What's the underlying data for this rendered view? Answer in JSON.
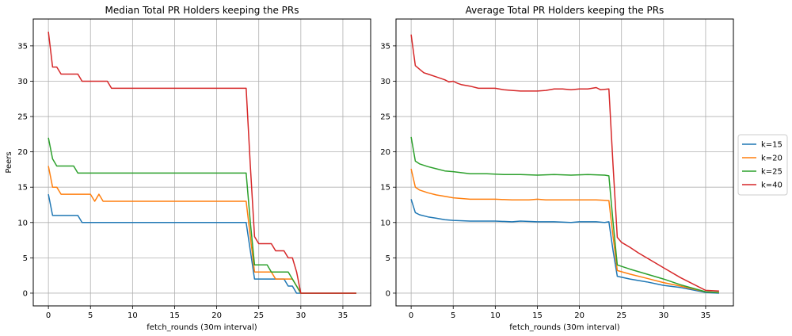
{
  "colors": {
    "k15": "#1f77b4",
    "k20": "#ff7f0e",
    "k25": "#2ca02c",
    "k40": "#d62728",
    "grid": "#b0b0b0",
    "axis": "#000000"
  },
  "legend": {
    "placement": "right",
    "entries": [
      "k=15",
      "k=20",
      "k=25",
      "k=40"
    ]
  },
  "chart_data": [
    {
      "type": "line",
      "title": "Median Total PR Holders keeping the PRs",
      "xlabel": "fetch_rounds (30m interval)",
      "ylabel": "Peers",
      "xlim": [
        -1.8,
        38.3
      ],
      "ylim": [
        -1.8,
        38.8
      ],
      "xticks": [
        0,
        5,
        10,
        15,
        20,
        25,
        30,
        35
      ],
      "yticks": [
        0,
        5,
        10,
        15,
        20,
        25,
        30,
        35
      ],
      "grid": true,
      "series": [
        {
          "name": "k=15",
          "color": "#1f77b4",
          "points": [
            [
              0,
              14
            ],
            [
              0.5,
              11
            ],
            [
              3.5,
              11
            ],
            [
              4,
              10
            ],
            [
              23.5,
              10
            ],
            [
              24,
              6
            ],
            [
              24.5,
              2
            ],
            [
              27.5,
              2
            ],
            [
              28,
              2
            ],
            [
              28.5,
              1
            ],
            [
              29,
              1
            ],
            [
              29.5,
              0
            ],
            [
              36.6,
              0
            ]
          ]
        },
        {
          "name": "k=20",
          "color": "#ff7f0e",
          "points": [
            [
              0,
              18
            ],
            [
              0.5,
              15
            ],
            [
              1,
              15
            ],
            [
              1.5,
              14
            ],
            [
              5,
              14
            ],
            [
              5.5,
              13
            ],
            [
              6,
              14
            ],
            [
              6.5,
              13
            ],
            [
              23.5,
              13
            ],
            [
              24,
              8
            ],
            [
              24.5,
              3
            ],
            [
              26.5,
              3
            ],
            [
              27,
              2
            ],
            [
              29,
              2
            ],
            [
              29.5,
              1
            ],
            [
              30,
              0
            ],
            [
              36.6,
              0
            ]
          ]
        },
        {
          "name": "k=25",
          "color": "#2ca02c",
          "points": [
            [
              0,
              22
            ],
            [
              0.5,
              19
            ],
            [
              1,
              18
            ],
            [
              3,
              18
            ],
            [
              3.5,
              17
            ],
            [
              23.5,
              17
            ],
            [
              24,
              10
            ],
            [
              24.5,
              4
            ],
            [
              26,
              4
            ],
            [
              26.5,
              3
            ],
            [
              28.5,
              3
            ],
            [
              29,
              2
            ],
            [
              29.5,
              1
            ],
            [
              30,
              0
            ],
            [
              36.6,
              0
            ]
          ]
        },
        {
          "name": "k=40",
          "color": "#d62728",
          "points": [
            [
              0,
              37
            ],
            [
              0.5,
              32
            ],
            [
              1,
              32
            ],
            [
              1.5,
              31
            ],
            [
              3.5,
              31
            ],
            [
              4,
              30
            ],
            [
              7,
              30
            ],
            [
              7.5,
              29
            ],
            [
              23.5,
              29
            ],
            [
              24,
              18
            ],
            [
              24.5,
              8
            ],
            [
              25,
              7
            ],
            [
              26.5,
              7
            ],
            [
              27,
              6
            ],
            [
              28,
              6
            ],
            [
              28.5,
              5
            ],
            [
              29,
              5
            ],
            [
              29.5,
              3
            ],
            [
              30,
              0
            ],
            [
              36.6,
              0
            ]
          ]
        }
      ]
    },
    {
      "type": "line",
      "title": "Average Total PR Holders keeping the PRs",
      "xlabel": "fetch_rounds (30m interval)",
      "ylabel": "",
      "xlim": [
        -1.8,
        38.3
      ],
      "ylim": [
        -1.8,
        38.8
      ],
      "xticks": [
        0,
        5,
        10,
        15,
        20,
        25,
        30,
        35
      ],
      "yticks": [
        0,
        5,
        10,
        15,
        20,
        25,
        30,
        35
      ],
      "grid": true,
      "series": [
        {
          "name": "k=15",
          "color": "#1f77b4",
          "points": [
            [
              0,
              13.3
            ],
            [
              0.5,
              11.4
            ],
            [
              1,
              11.1
            ],
            [
              2,
              10.8
            ],
            [
              3,
              10.6
            ],
            [
              4,
              10.4
            ],
            [
              5,
              10.3
            ],
            [
              7,
              10.2
            ],
            [
              10,
              10.2
            ],
            [
              12,
              10.1
            ],
            [
              13,
              10.2
            ],
            [
              15,
              10.1
            ],
            [
              17,
              10.1
            ],
            [
              19,
              10.0
            ],
            [
              20,
              10.1
            ],
            [
              22,
              10.1
            ],
            [
              23,
              10.0
            ],
            [
              23.5,
              10.1
            ],
            [
              24,
              6
            ],
            [
              24.5,
              2.4
            ],
            [
              26,
              2.0
            ],
            [
              28,
              1.6
            ],
            [
              30,
              1.1
            ],
            [
              32,
              0.8
            ],
            [
              35,
              0.1
            ],
            [
              36.6,
              0.0
            ]
          ]
        },
        {
          "name": "k=20",
          "color": "#ff7f0e",
          "points": [
            [
              0,
              17.6
            ],
            [
              0.5,
              15.0
            ],
            [
              1,
              14.6
            ],
            [
              2,
              14.2
            ],
            [
              3,
              13.9
            ],
            [
              4,
              13.7
            ],
            [
              5,
              13.5
            ],
            [
              7,
              13.3
            ],
            [
              10,
              13.3
            ],
            [
              12,
              13.2
            ],
            [
              14,
              13.2
            ],
            [
              15,
              13.3
            ],
            [
              16,
              13.2
            ],
            [
              18,
              13.2
            ],
            [
              20,
              13.2
            ],
            [
              22,
              13.2
            ],
            [
              23.5,
              13.1
            ],
            [
              24,
              8
            ],
            [
              24.5,
              3.2
            ],
            [
              26,
              2.7
            ],
            [
              28,
              2.1
            ],
            [
              30,
              1.5
            ],
            [
              32,
              1.0
            ],
            [
              35,
              0.2
            ],
            [
              36.6,
              0.1
            ]
          ]
        },
        {
          "name": "k=25",
          "color": "#2ca02c",
          "points": [
            [
              0,
              22.1
            ],
            [
              0.5,
              18.7
            ],
            [
              1,
              18.3
            ],
            [
              2,
              17.9
            ],
            [
              3,
              17.6
            ],
            [
              4,
              17.3
            ],
            [
              5,
              17.2
            ],
            [
              7,
              16.9
            ],
            [
              9,
              16.9
            ],
            [
              11,
              16.8
            ],
            [
              13,
              16.8
            ],
            [
              15,
              16.7
            ],
            [
              17,
              16.8
            ],
            [
              19,
              16.7
            ],
            [
              21,
              16.8
            ],
            [
              23,
              16.7
            ],
            [
              23.5,
              16.6
            ],
            [
              24,
              10
            ],
            [
              24.5,
              4.0
            ],
            [
              26,
              3.4
            ],
            [
              28,
              2.7
            ],
            [
              30,
              2.0
            ],
            [
              32,
              1.2
            ],
            [
              35,
              0.2
            ],
            [
              36.6,
              0.1
            ]
          ]
        },
        {
          "name": "k=40",
          "color": "#d62728",
          "points": [
            [
              0,
              36.6
            ],
            [
              0.5,
              32.2
            ],
            [
              1,
              31.7
            ],
            [
              1.5,
              31.2
            ],
            [
              2,
              31.0
            ],
            [
              3,
              30.6
            ],
            [
              4,
              30.2
            ],
            [
              4.5,
              29.9
            ],
            [
              5,
              30.0
            ],
            [
              5.5,
              29.7
            ],
            [
              6,
              29.5
            ],
            [
              7,
              29.3
            ],
            [
              8,
              29.0
            ],
            [
              9,
              29.0
            ],
            [
              10,
              29.0
            ],
            [
              11,
              28.8
            ],
            [
              12,
              28.7
            ],
            [
              13,
              28.6
            ],
            [
              14,
              28.6
            ],
            [
              15,
              28.6
            ],
            [
              16,
              28.7
            ],
            [
              17,
              28.9
            ],
            [
              18,
              28.9
            ],
            [
              19,
              28.8
            ],
            [
              20,
              28.9
            ],
            [
              21,
              28.9
            ],
            [
              22,
              29.1
            ],
            [
              22.5,
              28.8
            ],
            [
              23.5,
              28.9
            ],
            [
              24,
              18
            ],
            [
              24.5,
              7.9
            ],
            [
              25,
              7.2
            ],
            [
              26,
              6.5
            ],
            [
              27,
              5.7
            ],
            [
              28,
              5.0
            ],
            [
              30,
              3.6
            ],
            [
              32,
              2.2
            ],
            [
              35,
              0.4
            ],
            [
              36.6,
              0.3
            ]
          ]
        }
      ]
    }
  ]
}
